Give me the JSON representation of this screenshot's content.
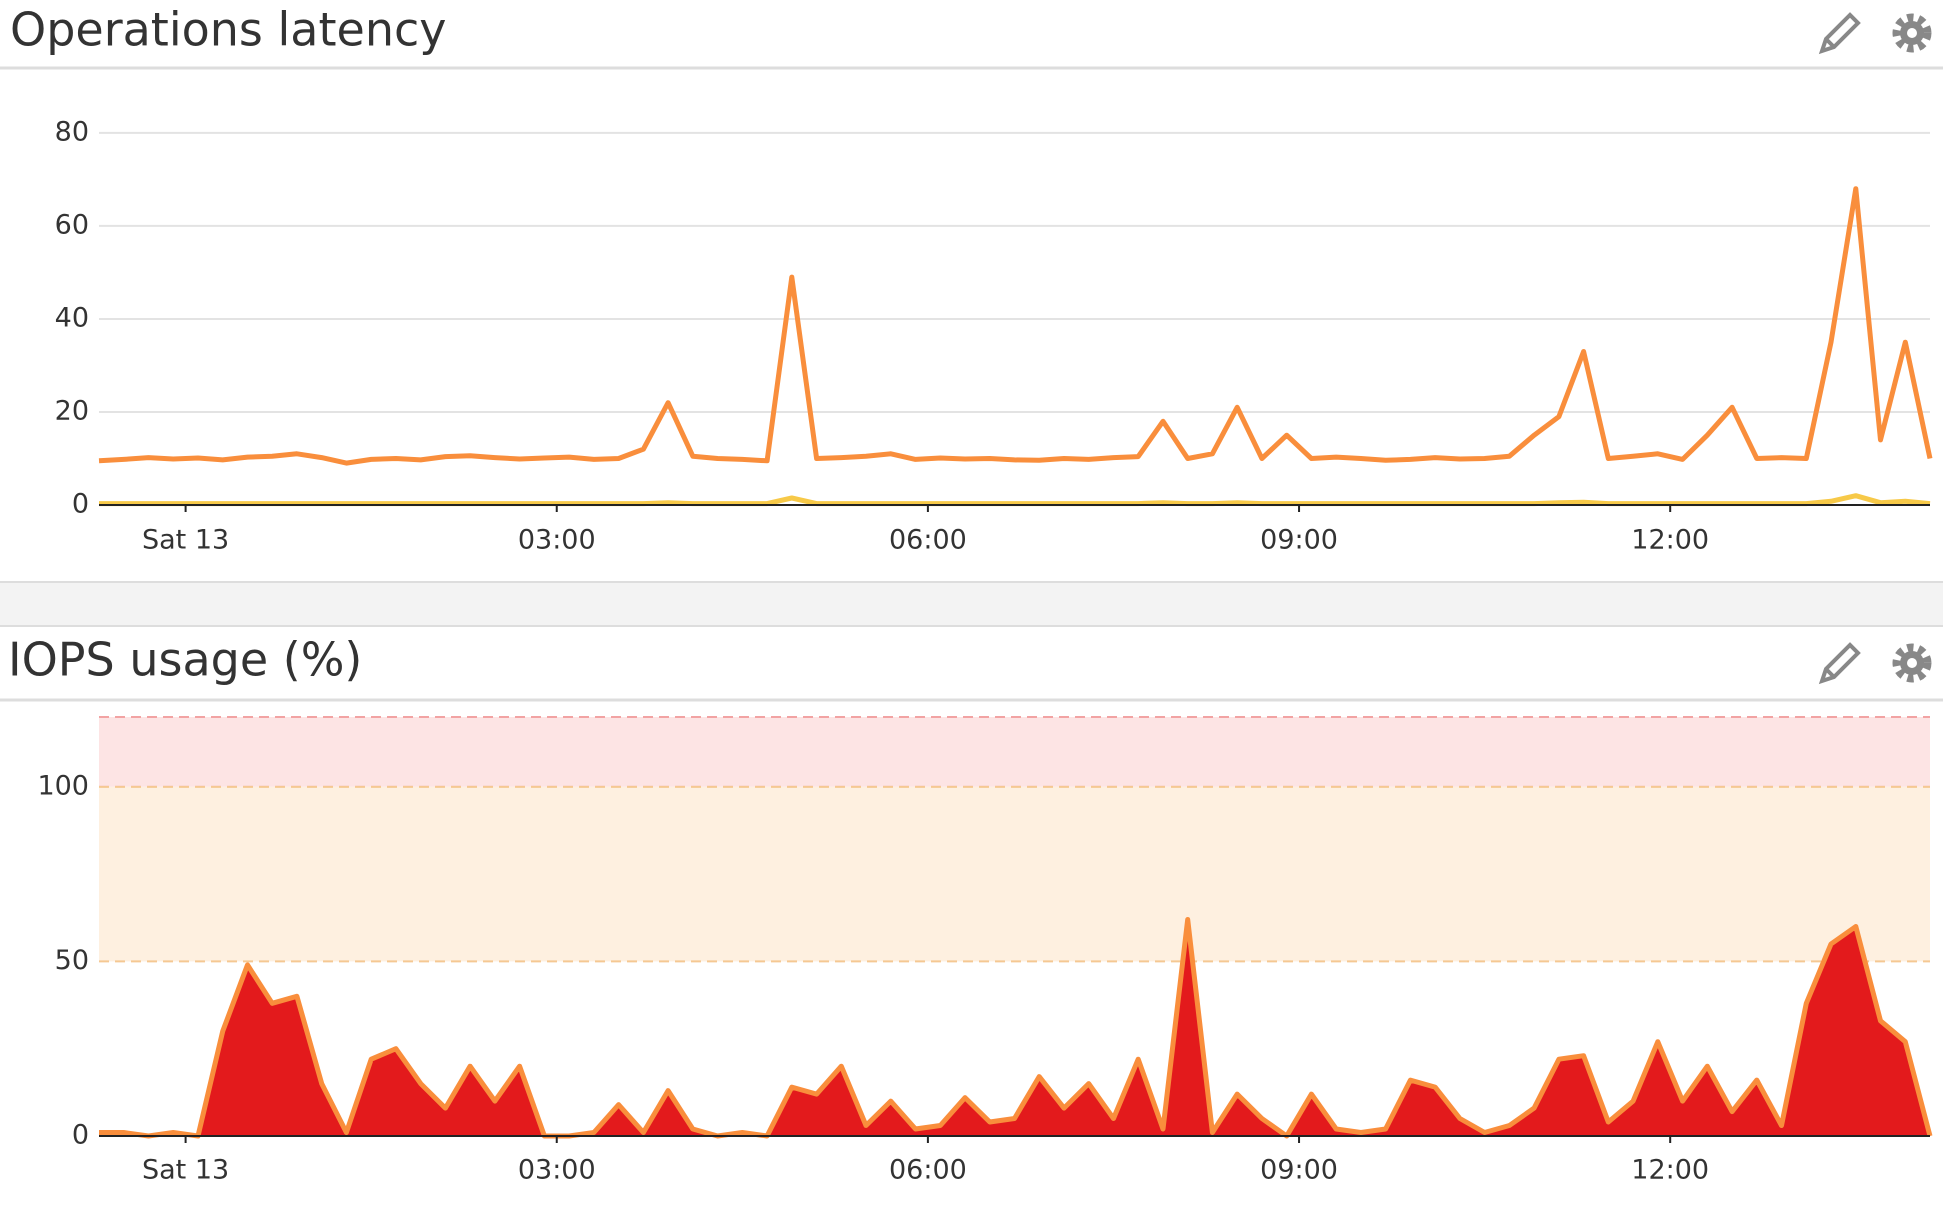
{
  "chart_data": [
    {
      "type": "line",
      "title": "Operations latency",
      "xlim": [
        -0.7,
        14.1
      ],
      "xticks": [
        {
          "value": 0,
          "label": "Sat 13"
        },
        {
          "value": 3,
          "label": "03:00"
        },
        {
          "value": 6,
          "label": "06:00"
        },
        {
          "value": 9,
          "label": "09:00"
        },
        {
          "value": 12,
          "label": "12:00"
        }
      ],
      "ylim": [
        0,
        86
      ],
      "yticks": [
        0,
        20,
        40,
        60,
        80
      ],
      "grid": true,
      "x": [
        -0.7,
        -0.5,
        -0.3,
        -0.1,
        0.1,
        0.3,
        0.5,
        0.7,
        0.9,
        1.1,
        1.3,
        1.5,
        1.7,
        1.9,
        2.1,
        2.3,
        2.5,
        2.7,
        2.9,
        3.1,
        3.3,
        3.5,
        3.7,
        3.9,
        4.1,
        4.3,
        4.5,
        4.7,
        4.9,
        5.1,
        5.3,
        5.5,
        5.7,
        5.9,
        6.1,
        6.3,
        6.5,
        6.7,
        6.9,
        7.1,
        7.3,
        7.5,
        7.7,
        7.9,
        8.1,
        8.3,
        8.5,
        8.7,
        8.9,
        9.1,
        9.3,
        9.5,
        9.7,
        9.9,
        10.1,
        10.3,
        10.5,
        10.7,
        10.9,
        11.1,
        11.3,
        11.5,
        11.7,
        11.9,
        12.1,
        12.3,
        12.5,
        12.7,
        12.9,
        13.1,
        13.3,
        13.5,
        13.7,
        13.9,
        14.1
      ],
      "series": [
        {
          "color": "#f98e3c",
          "values": [
            9.5,
            9.8,
            10.2,
            9.9,
            10.1,
            9.7,
            10.3,
            10.5,
            11,
            10.2,
            9,
            9.8,
            10,
            9.7,
            10.4,
            10.6,
            10.2,
            9.9,
            10.1,
            10.3,
            9.8,
            10,
            12,
            22,
            10.5,
            10,
            9.8,
            9.5,
            49,
            10,
            10.2,
            10.5,
            11,
            9.8,
            10.1,
            9.9,
            10,
            9.7,
            9.6,
            10,
            9.8,
            10.2,
            10.4,
            18,
            10,
            11,
            21,
            10,
            15,
            10,
            10.3,
            10,
            9.6,
            9.8,
            10.2,
            9.9,
            10,
            10.5,
            15,
            19,
            33,
            10,
            10.5,
            11,
            9.8,
            15,
            21,
            10,
            10.2,
            10,
            35,
            68,
            14,
            35,
            10
          ]
        },
        {
          "color": "#f7c948",
          "values": [
            0.3,
            0.3,
            0.3,
            0.3,
            0.3,
            0.3,
            0.3,
            0.3,
            0.3,
            0.3,
            0.3,
            0.3,
            0.3,
            0.3,
            0.3,
            0.3,
            0.3,
            0.3,
            0.3,
            0.3,
            0.3,
            0.3,
            0.3,
            0.5,
            0.3,
            0.3,
            0.3,
            0.3,
            1.5,
            0.3,
            0.3,
            0.3,
            0.3,
            0.3,
            0.3,
            0.3,
            0.3,
            0.3,
            0.3,
            0.3,
            0.3,
            0.3,
            0.3,
            0.5,
            0.3,
            0.3,
            0.5,
            0.3,
            0.3,
            0.3,
            0.3,
            0.3,
            0.3,
            0.3,
            0.3,
            0.3,
            0.3,
            0.3,
            0.3,
            0.5,
            0.6,
            0.3,
            0.3,
            0.3,
            0.3,
            0.3,
            0.3,
            0.3,
            0.3,
            0.3,
            0.8,
            2,
            0.5,
            0.8,
            0.3
          ]
        }
      ]
    },
    {
      "type": "area",
      "title": "IOPS usage (%)",
      "xlim": [
        -0.7,
        14.1
      ],
      "xticks": [
        {
          "value": 0,
          "label": "Sat 13"
        },
        {
          "value": 3,
          "label": "03:00"
        },
        {
          "value": 6,
          "label": "06:00"
        },
        {
          "value": 9,
          "label": "09:00"
        },
        {
          "value": 12,
          "label": "12:00"
        }
      ],
      "ylim": [
        0,
        120
      ],
      "yticks": [
        0,
        50,
        100
      ],
      "bands": [
        {
          "from": 100,
          "to": 120,
          "color": "#fde4e4",
          "line": "#f2a3a3"
        },
        {
          "from": 50,
          "to": 100,
          "color": "#fef0e0",
          "line": "#f5c892"
        }
      ],
      "x": [
        -0.7,
        -0.5,
        -0.3,
        -0.1,
        0.1,
        0.3,
        0.5,
        0.7,
        0.9,
        1.1,
        1.3,
        1.5,
        1.7,
        1.9,
        2.1,
        2.3,
        2.5,
        2.7,
        2.9,
        3.1,
        3.3,
        3.5,
        3.7,
        3.9,
        4.1,
        4.3,
        4.5,
        4.7,
        4.9,
        5.1,
        5.3,
        5.5,
        5.7,
        5.9,
        6.1,
        6.3,
        6.5,
        6.7,
        6.9,
        7.1,
        7.3,
        7.5,
        7.7,
        7.9,
        8.1,
        8.3,
        8.5,
        8.7,
        8.9,
        9.1,
        9.3,
        9.5,
        9.7,
        9.9,
        10.1,
        10.3,
        10.5,
        10.7,
        10.9,
        11.1,
        11.3,
        11.5,
        11.7,
        11.9,
        12.1,
        12.3,
        12.5,
        12.7,
        12.9,
        13.1,
        13.3,
        13.5,
        13.7,
        13.9,
        14.1
      ],
      "series": [
        {
          "color": "#f98e3c",
          "fill": "#e31a1c",
          "values": [
            1,
            1,
            0,
            1,
            0,
            30,
            49,
            38,
            40,
            15,
            1,
            22,
            25,
            15,
            8,
            20,
            10,
            20,
            0,
            0,
            1,
            9,
            1,
            13,
            2,
            0,
            1,
            0,
            14,
            12,
            20,
            3,
            10,
            2,
            3,
            11,
            4,
            5,
            17,
            8,
            15,
            5,
            22,
            2,
            62,
            1,
            12,
            5,
            0,
            12,
            2,
            1,
            2,
            16,
            14,
            5,
            1,
            3,
            8,
            22,
            23,
            4,
            10,
            27,
            10,
            20,
            7,
            16,
            3,
            38,
            55,
            60,
            33,
            27,
            0
          ]
        }
      ]
    }
  ]
}
